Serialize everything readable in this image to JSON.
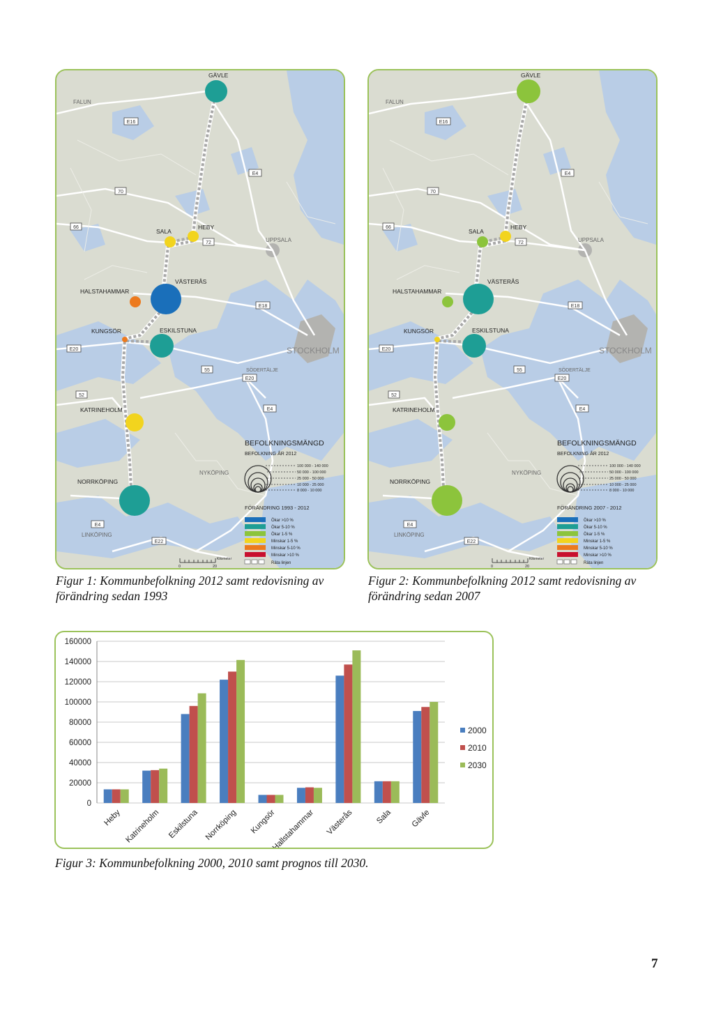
{
  "maps": [
    {
      "id": "map1",
      "labels": {
        "falun": "FALUN",
        "uppsala": "UPPSALA",
        "stockholm": "STOCKHOLM",
        "sodertalje": "SÖDERTÄLJE",
        "nykoping": "NYKÖPING",
        "linkoping": "LINKÖPING"
      },
      "roads": [
        "E16",
        "E4",
        "70",
        "66",
        "72",
        "E18",
        "E20",
        "55",
        "E20",
        "52",
        "E4",
        "E4",
        "E22"
      ],
      "cities": [
        {
          "name": "GÄVLE",
          "color": "#1e9e95"
        },
        {
          "name": "SALA",
          "color": "#f2d41e"
        },
        {
          "name": "HEBY",
          "color": "#f2d41e"
        },
        {
          "name": "VÄSTERÅS",
          "color": "#1a6fba"
        },
        {
          "name": "HALSTAHAMMAR",
          "color": "#ec7a1e"
        },
        {
          "name": "KUNGSÖR",
          "color": "#ec7a1e"
        },
        {
          "name": "ESKILSTUNA",
          "color": "#1e9e95"
        },
        {
          "name": "KATRINEHOLM",
          "color": "#f2d41e"
        },
        {
          "name": "NORRKÖPING",
          "color": "#1e9e95"
        }
      ],
      "legend": {
        "title": "BEFOLKNINGSMÄNGD",
        "subtitle": "BEFOLKNING ÅR 2012",
        "sizes": [
          "100 000 - 140 000",
          "50 000 - 100 000",
          "25 000 - 50 000",
          "10 000 - 25 000",
          "8 000 - 10 000"
        ],
        "change_title": "FÖRÄNDRING 1993 - 2012",
        "changes": [
          {
            "label": "Ökar >10 %",
            "color": "#1a6fba"
          },
          {
            "label": "Ökar 5-10 %",
            "color": "#1e9e95"
          },
          {
            "label": "Ökar 1-5 %",
            "color": "#8cc43c"
          },
          {
            "label": "Minskar 1-5 %",
            "color": "#f2d41e"
          },
          {
            "label": "Minskar 5-10 %",
            "color": "#ec7a1e"
          },
          {
            "label": "Minskar >10 %",
            "color": "#c8102e"
          }
        ],
        "railway": "Räta linjen",
        "scale_unit": "Kilometer",
        "scale_start": "0",
        "scale_end": "20"
      }
    },
    {
      "id": "map2",
      "labels": {
        "falun": "FALUN",
        "uppsala": "UPPSALA",
        "stockholm": "STOCKHOLM",
        "sodertalje": "SÖDERTÄLJE",
        "nykoping": "NYKÖPING",
        "linkoping": "LINKÖPING"
      },
      "roads": [
        "E16",
        "E4",
        "70",
        "66",
        "72",
        "E18",
        "E20",
        "55",
        "E20",
        "52",
        "E4",
        "E4",
        "E22"
      ],
      "cities": [
        {
          "name": "GÄVLE",
          "color": "#8cc43c"
        },
        {
          "name": "SALA",
          "color": "#8cc43c"
        },
        {
          "name": "HEBY",
          "color": "#f2d41e"
        },
        {
          "name": "VÄSTERÅS",
          "color": "#1e9e95"
        },
        {
          "name": "HALSTAHAMMAR",
          "color": "#8cc43c"
        },
        {
          "name": "KUNGSÖR",
          "color": "#f2d41e"
        },
        {
          "name": "ESKILSTUNA",
          "color": "#1e9e95"
        },
        {
          "name": "KATRINEHOLM",
          "color": "#8cc43c"
        },
        {
          "name": "NORRKÖPING",
          "color": "#8cc43c"
        }
      ],
      "legend": {
        "title": "BEFOLKNINGSMÄNGD",
        "subtitle": "BEFOLKNING ÅR 2012",
        "sizes": [
          "100 000 - 140 000",
          "50 000 - 100 000",
          "25 000 - 50 000",
          "10 000 - 25 000",
          "8 000 - 10 000"
        ],
        "change_title": "FÖRÄNDRING 2007 - 2012",
        "changes": [
          {
            "label": "Ökar >10 %",
            "color": "#1a6fba"
          },
          {
            "label": "Ökar 5-10 %",
            "color": "#1e9e95"
          },
          {
            "label": "Ökar 1-5 %",
            "color": "#8cc43c"
          },
          {
            "label": "Minskar 1-5 %",
            "color": "#f2d41e"
          },
          {
            "label": "Minskar 5-10 %",
            "color": "#ec7a1e"
          },
          {
            "label": "Minskar >10 %",
            "color": "#c8102e"
          }
        ],
        "railway": "Räta linjen",
        "scale_unit": "Kilometer",
        "scale_start": "0",
        "scale_end": "20"
      }
    }
  ],
  "captions": {
    "fig1_line1": "Figur 1: Kommunbefolkning 2012 samt redovisning av",
    "fig1_line2": "förändring sedan 1993",
    "fig2_line1": "Figur 2: Kommunbefolkning 2012 samt redovisning av",
    "fig2_line2": "förändring sedan 2007",
    "fig3": "Figur 3: Kommunbefolkning 2000, 2010 samt prognos till 2030."
  },
  "chart_data": {
    "type": "bar",
    "categories": [
      "Heby",
      "Katrineholm",
      "Eskilstuna",
      "Norrköping",
      "Kungsör",
      "Hallstahammar",
      "Västerås",
      "Sala",
      "Gävle"
    ],
    "series": [
      {
        "name": "2000",
        "color": "#4a7ebf",
        "values": [
          13500,
          32000,
          88000,
          122000,
          8000,
          15000,
          126000,
          21500,
          91000
        ]
      },
      {
        "name": "2010",
        "color": "#c0504d",
        "values": [
          13500,
          32500,
          96000,
          130000,
          8000,
          15500,
          137000,
          21500,
          95000
        ]
      },
      {
        "name": "2030",
        "color": "#9bbb59",
        "values": [
          13500,
          34000,
          108500,
          141500,
          8000,
          15000,
          151000,
          21500,
          100000
        ]
      }
    ],
    "ylim": [
      0,
      160000
    ],
    "yticks": [
      "0",
      "20000",
      "40000",
      "60000",
      "80000",
      "100000",
      "120000",
      "140000",
      "160000"
    ],
    "grid": true,
    "legend": "right",
    "title": "",
    "xlabel": "",
    "ylabel": ""
  },
  "page_number": "7"
}
